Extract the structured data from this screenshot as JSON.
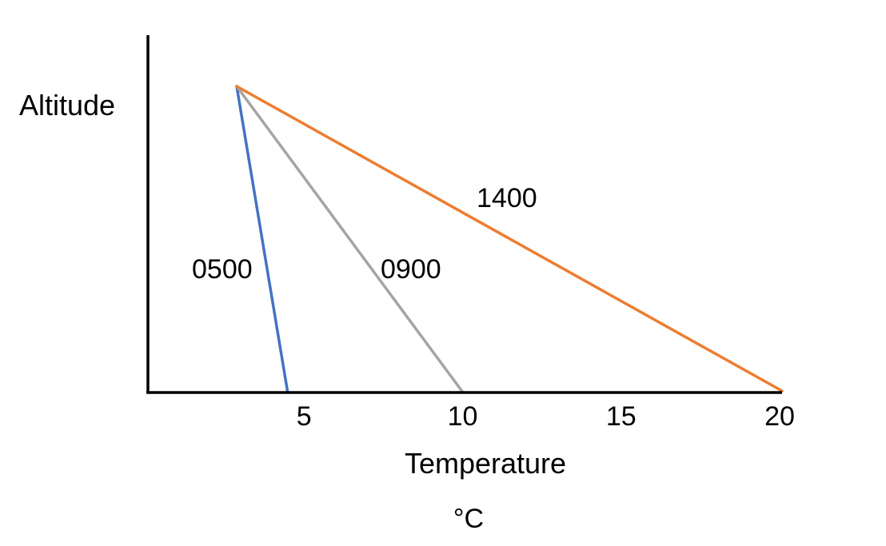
{
  "chart_data": {
    "type": "line",
    "ylabel": "Altitude",
    "xlabel": "Temperature",
    "xunit": "°C",
    "xticks": [
      5,
      10,
      15,
      20
    ],
    "xlim": [
      0,
      20
    ],
    "ylim": [
      0,
      1
    ],
    "grid": false,
    "legend": "none",
    "series": [
      {
        "name": "0500",
        "color": "#4472C4",
        "x": [
          2.8,
          4.4
        ],
        "y": [
          1,
          0
        ]
      },
      {
        "name": "0900",
        "color": "#A5A5A5",
        "x": [
          2.8,
          9.9
        ],
        "y": [
          1,
          0
        ]
      },
      {
        "name": "1400",
        "color": "#ED7D31",
        "x": [
          2.8,
          20
        ],
        "y": [
          1,
          0
        ]
      }
    ]
  }
}
